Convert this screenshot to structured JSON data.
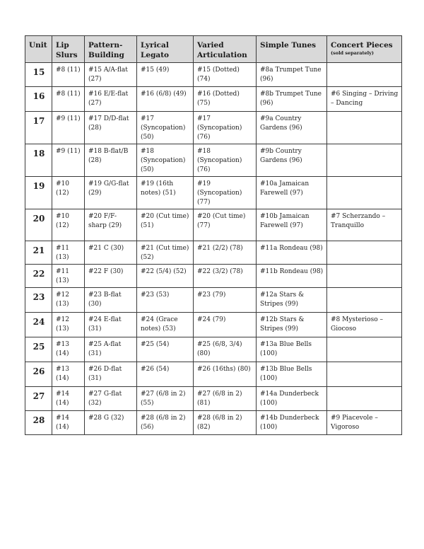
{
  "table": {
    "headers": [
      {
        "label": "Unit"
      },
      {
        "label": "Lip Slurs"
      },
      {
        "label": "Pattern-Building"
      },
      {
        "label": "Lyrical Legato"
      },
      {
        "label": "Varied Articulation"
      },
      {
        "label": "Simple Tunes"
      },
      {
        "label": "Concert Pieces",
        "sub": "(sold separately)"
      }
    ],
    "rows": [
      [
        "15",
        "#8 (11)",
        "#15 A/A-flat (27)",
        "#15 (49)",
        "#15 (Dotted) (74)",
        "#8a Trumpet Tune (96)",
        ""
      ],
      [
        "16",
        "#8 (11)",
        "#16 E/E-flat (27)",
        "#16 (6/8) (49)",
        "#16 (Dotted) (75)",
        "#8b Trumpet Tune (96)",
        "#6 Singing – Driving – Dancing"
      ],
      [
        "17",
        "#9 (11)",
        "#17 D/D-flat (28)",
        "#17 (Syncopation) (50)",
        "#17 (Syncopation) (76)",
        "#9a Country Gardens (96)",
        ""
      ],
      [
        "18",
        "#9 (11)",
        "#18 B-flat/B (28)",
        "#18 (Syncopation) (50)",
        "#18 (Syncopation) (76)",
        "#9b Country Gardens (96)",
        ""
      ],
      [
        "19",
        "#10 (12)",
        "#19 G/G-flat (29)",
        "#19 (16th notes) (51)",
        "#19 (Syncopation) (77)",
        "#10a Jamaican Farewell (97)",
        ""
      ],
      [
        "20",
        "#10 (12)",
        "#20 F/F-sharp (29)",
        "#20 (Cut time) (51)",
        "#20 (Cut time) (77)",
        "#10b Jamaican Farewell (97)",
        "#7 Scherzando – Tranquillo"
      ],
      [
        "21",
        "#11 (13)",
        "#21 C  (30)",
        "#21 (Cut time) (52)",
        "#21 (2/2) (78)",
        "#11a Rondeau (98)",
        ""
      ],
      [
        "22",
        "#11 (13)",
        "#22 F (30)",
        "#22 (5/4) (52)",
        "#22 (3/2) (78)",
        "#11b Rondeau (98)",
        ""
      ],
      [
        "23",
        "#12 (13)",
        "#23 B-flat (30)",
        "#23 (53)",
        "#23 (79)",
        "#12a Stars & Stripes (99)",
        ""
      ],
      [
        "24",
        "#12 (13)",
        "#24 E-flat (31)",
        "#24 (Grace notes) (53)",
        "#24 (79)",
        "#12b Stars & Stripes (99)",
        "#8 Mysterioso – Giocoso"
      ],
      [
        "25",
        "#13 (14)",
        "#25 A-flat (31)",
        "#25 (54)",
        "#25 (6/8, 3/4) (80)",
        "#13a Blue Bells (100)",
        ""
      ],
      [
        "26",
        "#13 (14)",
        "#26 D-flat (31)",
        "#26 (54)",
        "#26 (16ths)  (80)",
        "#13b Blue Bells (100)",
        ""
      ],
      [
        "27",
        "#14 (14)",
        "#27 G-flat (32)",
        "#27 (6/8 in 2) (55)",
        "#27 (6/8 in 2) (81)",
        "#14a Dunderbeck (100)",
        ""
      ],
      [
        "28",
        "#14 (14)",
        "#28 G (32)",
        "#28 (6/8 in 2) (56)",
        "#28 (6/8 in 2) (82)",
        "#14b Dunderbeck (100)",
        "#9 Piacevole – Vigoroso"
      ]
    ]
  }
}
